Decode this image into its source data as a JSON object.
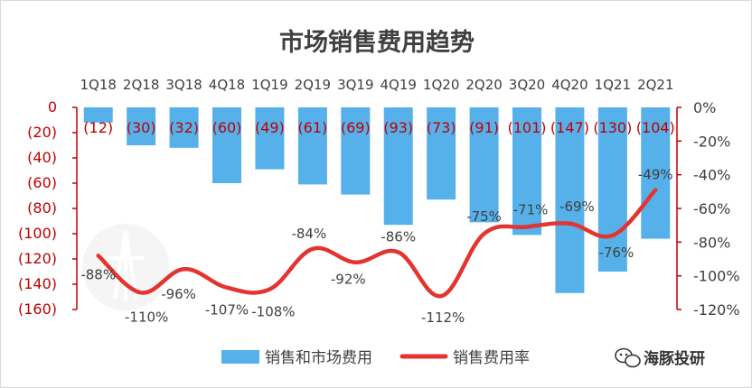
{
  "chart_data": {
    "type": "bar",
    "title": "市场销售费用趋势",
    "categories": [
      "1Q18",
      "2Q18",
      "3Q18",
      "4Q18",
      "1Q19",
      "2Q19",
      "3Q19",
      "4Q19",
      "1Q20",
      "2Q20",
      "3Q20",
      "4Q20",
      "1Q21",
      "2Q21"
    ],
    "series": [
      {
        "name": "销售和市场费用",
        "type": "bar",
        "axis": "left",
        "color": "#56b0ea",
        "values": [
          -12,
          -30,
          -32,
          -60,
          -49,
          -61,
          -69,
          -93,
          -73,
          -91,
          -101,
          -147,
          -130,
          -104
        ],
        "value_labels": [
          "(12)",
          "(30)",
          "(32)",
          "(60)",
          "(49)",
          "(61)",
          "(69)",
          "(93)",
          "(73)",
          "(91)",
          "(101)",
          "(147)",
          "(130)",
          "(104)"
        ]
      },
      {
        "name": "销售费用率",
        "type": "line",
        "axis": "right",
        "color": "#e3342f",
        "smooth": true,
        "values": [
          -88,
          -110,
          -96,
          -107,
          -108,
          -84,
          -92,
          -86,
          -112,
          -75,
          -71,
          -69,
          -76,
          -49
        ],
        "value_labels": [
          "-88%",
          "-110%",
          "-96%",
          "-107%",
          "-108%",
          "-84%",
          "-92%",
          "-86%",
          "-112%",
          "-75%",
          "-71%",
          "-69%",
          "-76%",
          "-49%"
        ]
      }
    ],
    "left_axis": {
      "ylim": [
        -160,
        0
      ],
      "tick_labels": [
        "0",
        "(20)",
        "(40)",
        "(60)",
        "(80)",
        "(100)",
        "(120)",
        "(140)",
        "(160)"
      ],
      "color": "#c00000"
    },
    "right_axis": {
      "ylim": [
        -120,
        0
      ],
      "tick_labels": [
        "0%",
        "-20%",
        "-40%",
        "-60%",
        "-80%",
        "-100%",
        "-120%"
      ],
      "color": "#404040"
    },
    "xlabel": "",
    "legend_position": "bottom",
    "grid": false
  },
  "watermark": {
    "text": "海豚投研",
    "icon": "wechat-icon"
  }
}
